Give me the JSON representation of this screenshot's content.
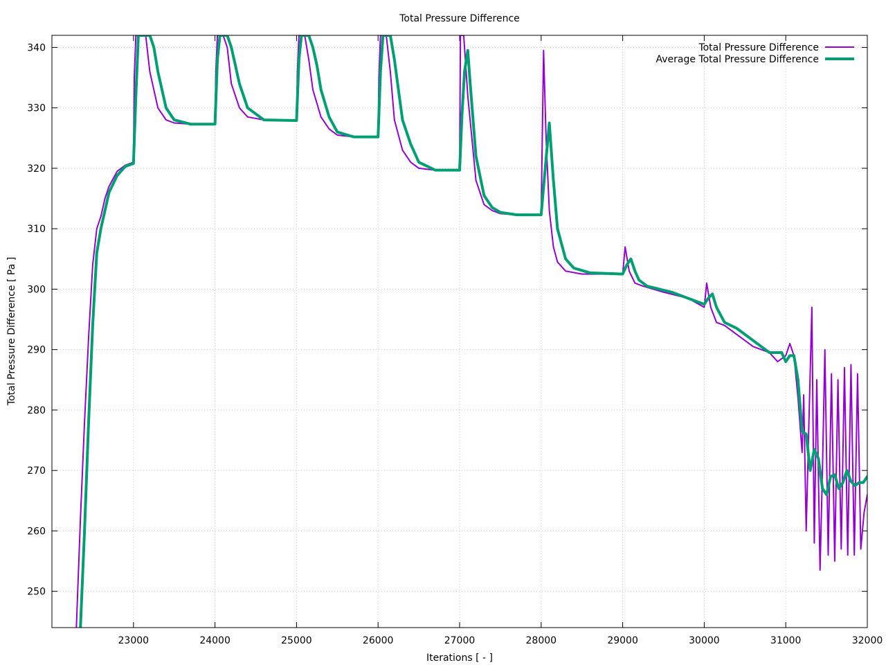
{
  "chart_data": {
    "type": "line",
    "title": "Total Pressure Difference",
    "xlabel": "Iterations [ - ]",
    "ylabel": "Total Pressure Difference [ Pa ]",
    "xlim": [
      22000,
      32000
    ],
    "ylim": [
      244,
      342
    ],
    "xticks": [
      23000,
      24000,
      25000,
      26000,
      27000,
      28000,
      29000,
      30000,
      31000,
      32000
    ],
    "yticks": [
      250,
      260,
      270,
      280,
      290,
      300,
      310,
      320,
      330,
      340
    ],
    "grid": true,
    "legend_position": "top-right",
    "series": [
      {
        "name": "Total Pressure Difference",
        "color": "#9400d3",
        "x": [
          22300,
          22350,
          22400,
          22450,
          22500,
          22550,
          22600,
          22650,
          22700,
          22800,
          22900,
          23000,
          23010,
          23030,
          23100,
          23150,
          23200,
          23300,
          23400,
          23500,
          23700,
          23900,
          24000,
          24010,
          24030,
          24100,
          24150,
          24200,
          24300,
          24400,
          24600,
          24800,
          25000,
          25010,
          25030,
          25100,
          25150,
          25200,
          25300,
          25400,
          25500,
          25700,
          26000,
          26010,
          26030,
          26100,
          26150,
          26200,
          26300,
          26400,
          26500,
          26700,
          27000,
          27010,
          27050,
          27100,
          27150,
          27200,
          27300,
          27400,
          27500,
          27700,
          28000,
          28030,
          28060,
          28100,
          28150,
          28200,
          28300,
          28500,
          28700,
          29000,
          29030,
          29080,
          29150,
          29250,
          29500,
          29800,
          30000,
          30030,
          30080,
          30150,
          30250,
          30400,
          30600,
          30800,
          30900,
          31000,
          31050,
          31100,
          31150,
          31200,
          31220,
          31250,
          31280,
          31320,
          31350,
          31380,
          31420,
          31450,
          31480,
          31520,
          31560,
          31600,
          31640,
          31680,
          31720,
          31760,
          31800,
          31840,
          31880,
          31920,
          31960,
          32000
        ],
        "values": [
          244,
          262,
          278,
          292,
          304,
          310,
          312,
          315,
          317,
          319.5,
          320.5,
          321,
          335,
          342,
          342,
          342,
          336,
          330,
          328,
          327.5,
          327.3,
          327.3,
          327.4,
          336,
          342,
          342,
          340,
          334,
          330,
          328.5,
          328,
          328,
          328,
          336,
          342,
          342,
          338,
          333,
          328.5,
          326.5,
          325.5,
          325.2,
          325.2,
          335,
          342,
          342,
          336,
          328,
          323,
          321,
          320,
          319.7,
          319.7,
          342,
          342,
          332,
          325,
          318,
          314,
          313,
          312.5,
          312.3,
          312.3,
          339.5,
          325,
          313,
          307,
          304.5,
          303,
          302.5,
          302.5,
          302.5,
          307,
          303,
          301,
          300.5,
          299.5,
          298.5,
          297,
          301,
          297,
          294.5,
          294,
          292.5,
          290.5,
          289.5,
          288,
          289,
          291,
          289,
          282,
          273,
          282.5,
          260,
          276,
          297,
          258,
          285,
          253.5,
          270,
          290,
          256,
          286,
          255,
          285,
          257,
          287,
          256,
          287.5,
          256,
          286,
          257,
          263,
          266
        ]
      },
      {
        "name": "Average Total Pressure Difference",
        "color": "#009e73",
        "x": [
          22350,
          22400,
          22450,
          22500,
          22550,
          22600,
          22650,
          22700,
          22800,
          22900,
          23000,
          23030,
          23060,
          23100,
          23150,
          23200,
          23250,
          23300,
          23400,
          23500,
          23700,
          24000,
          24030,
          24060,
          24100,
          24150,
          24200,
          24250,
          24300,
          24400,
          24600,
          25000,
          25030,
          25060,
          25100,
          25150,
          25200,
          25250,
          25300,
          25400,
          25500,
          25700,
          26000,
          26030,
          26060,
          26100,
          26150,
          26200,
          26250,
          26300,
          26400,
          26500,
          26700,
          27000,
          27030,
          27060,
          27100,
          27130,
          27200,
          27300,
          27400,
          27500,
          27700,
          28000,
          28050,
          28100,
          28150,
          28200,
          28300,
          28400,
          28600,
          29000,
          29050,
          29100,
          29150,
          29200,
          29300,
          29600,
          29900,
          30000,
          30050,
          30100,
          30150,
          30250,
          30400,
          30600,
          30800,
          30950,
          31000,
          31050,
          31100,
          31150,
          31200,
          31250,
          31300,
          31350,
          31400,
          31450,
          31500,
          31550,
          31600,
          31650,
          31700,
          31750,
          31800,
          31850,
          31900,
          31950,
          32000
        ],
        "values": [
          244,
          260,
          278,
          294,
          306,
          310,
          313,
          316,
          318.8,
          320.3,
          320.8,
          332,
          342,
          342,
          342,
          342,
          340,
          336,
          330,
          328,
          327.3,
          327.3,
          338,
          342,
          342,
          342,
          340,
          337,
          334,
          330,
          328,
          327.9,
          338,
          342,
          342,
          342,
          340,
          337,
          333,
          328.5,
          326,
          325.2,
          325.2,
          336,
          342,
          342,
          342,
          338,
          333,
          328,
          324,
          321,
          319.7,
          319.7,
          329,
          336,
          339.5,
          334,
          322,
          315.5,
          313.5,
          312.7,
          312.3,
          312.3,
          320,
          327.5,
          318,
          310,
          305,
          303.5,
          302.7,
          302.5,
          304,
          305,
          303,
          301.5,
          300.5,
          299.5,
          298,
          297.5,
          298.5,
          299.2,
          297,
          294.5,
          293.5,
          291.5,
          289.5,
          289.5,
          288,
          289,
          289,
          285,
          276.5,
          276,
          270,
          273.5,
          272,
          267,
          266,
          269,
          269.3,
          267,
          268,
          270,
          268.2,
          267.5,
          268,
          268,
          269
        ]
      }
    ]
  }
}
